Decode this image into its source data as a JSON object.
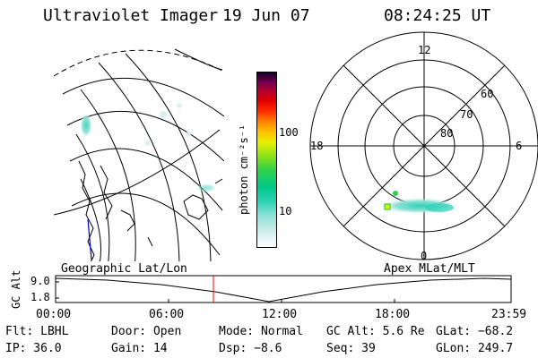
{
  "header": {
    "instrument": "Ultraviolet Imager",
    "date": "19 Jun 07",
    "time": "08:24:25 UT"
  },
  "colorbar": {
    "unit_label": "photon cm⁻²s⁻¹",
    "ticks": [
      "100",
      "10"
    ]
  },
  "polar_plot": {
    "mlt_labels": {
      "top": "12",
      "bottom": "0",
      "left": "18",
      "right": "6"
    },
    "lat_labels": [
      "60",
      "70",
      "80"
    ]
  },
  "timeline": {
    "left_label": "Geographic Lat/Lon",
    "right_label": "Apex MLat/MLT",
    "axis_title": "GC Alt",
    "y_ticks": [
      "9.0",
      "1.8"
    ],
    "x_ticks": [
      "00:00",
      "06:00",
      "12:00",
      "18:00",
      "23:59"
    ],
    "marker_color": "#ff0000"
  },
  "status": {
    "flt": "Flt: LBHL",
    "door": "Door: Open",
    "mode": "Mode: Normal",
    "gcalt": "GC Alt: 5.6 Re",
    "glat": "GLat: −68.2",
    "ip": "IP: 36.0",
    "gain": "Gain: 14",
    "dsp": "Dsp:   −8.6",
    "seq": "Seq: 39",
    "glon": "GLon: 249.7"
  }
}
